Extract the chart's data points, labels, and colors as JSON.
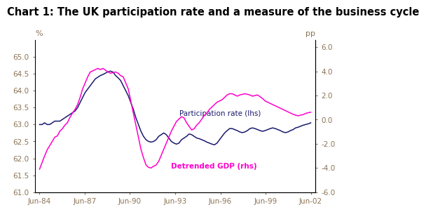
{
  "title": "Chart 1: The UK participation rate and a measure of the business cycle",
  "title_fontsize": 10.5,
  "lhs_label": "%",
  "rhs_label": "pp",
  "lhs_ylim": [
    61.0,
    65.5
  ],
  "rhs_ylim": [
    -6.0,
    6.6
  ],
  "lhs_yticks": [
    61.0,
    61.5,
    62.0,
    62.5,
    63.0,
    63.5,
    64.0,
    64.5,
    65.0
  ],
  "rhs_yticks": [
    -6.0,
    -4.0,
    -2.0,
    0.0,
    2.0,
    4.0,
    6.0
  ],
  "xtick_labels": [
    "Jun-84",
    "Jun-87",
    "Jun-90",
    "Jun-93",
    "Jun-96",
    "Jun-99",
    "Jun-02"
  ],
  "annotation_participation": "Participation rate (lhs)",
  "annotation_gdp": "Detrended GDP (rhs)",
  "participation_color": "#1a1a6e",
  "gdp_color": "#ff00cc",
  "background_color": "#ffffff",
  "label_color": "#8B7355",
  "participation_rate": [
    63.0,
    63.0,
    63.05,
    63.0,
    63.0,
    63.05,
    63.1,
    63.1,
    63.1,
    63.15,
    63.2,
    63.25,
    63.3,
    63.35,
    63.4,
    63.5,
    63.65,
    63.8,
    63.95,
    64.05,
    64.15,
    64.25,
    64.35,
    64.4,
    64.45,
    64.48,
    64.52,
    64.56,
    64.58,
    64.55,
    64.45,
    64.38,
    64.3,
    64.15,
    64.0,
    63.85,
    63.65,
    63.45,
    63.2,
    63.0,
    62.8,
    62.65,
    62.55,
    62.5,
    62.48,
    62.5,
    62.55,
    62.65,
    62.7,
    62.75,
    62.7,
    62.6,
    62.5,
    62.45,
    62.42,
    62.45,
    62.55,
    62.6,
    62.65,
    62.72,
    62.7,
    62.65,
    62.6,
    62.58,
    62.55,
    62.52,
    62.48,
    62.45,
    62.42,
    62.4,
    62.45,
    62.55,
    62.65,
    62.75,
    62.82,
    62.88,
    62.88,
    62.85,
    62.82,
    62.78,
    62.76,
    62.78,
    62.82,
    62.88,
    62.9,
    62.88,
    62.85,
    62.82,
    62.8,
    62.82,
    62.85,
    62.88,
    62.9,
    62.88,
    62.85,
    62.82,
    62.78,
    62.76,
    62.78,
    62.82,
    62.85,
    62.9,
    62.92,
    62.95,
    62.98,
    63.0,
    63.02,
    63.05
  ],
  "detrended_gdp": [
    -4.1,
    -3.55,
    -3.0,
    -2.5,
    -2.15,
    -1.8,
    -1.45,
    -1.35,
    -0.95,
    -0.75,
    -0.45,
    -0.25,
    0.2,
    0.55,
    0.85,
    1.25,
    1.85,
    2.55,
    3.05,
    3.55,
    3.95,
    4.05,
    4.15,
    4.25,
    4.15,
    4.25,
    4.1,
    3.95,
    3.85,
    3.9,
    3.95,
    3.85,
    3.65,
    3.55,
    3.05,
    2.55,
    1.55,
    0.55,
    -0.45,
    -1.45,
    -2.45,
    -3.15,
    -3.75,
    -3.95,
    -4.0,
    -3.85,
    -3.75,
    -3.45,
    -2.95,
    -2.45,
    -1.95,
    -1.45,
    -0.95,
    -0.55,
    -0.15,
    0.05,
    0.25,
    0.15,
    -0.25,
    -0.55,
    -0.85,
    -0.75,
    -0.45,
    -0.25,
    0.05,
    0.35,
    0.55,
    0.85,
    1.05,
    1.25,
    1.45,
    1.55,
    1.65,
    1.85,
    2.05,
    2.15,
    2.15,
    2.05,
    1.95,
    2.05,
    2.1,
    2.15,
    2.1,
    2.05,
    1.95,
    2.0,
    2.05,
    1.9,
    1.75,
    1.55,
    1.45,
    1.35,
    1.25,
    1.15,
    1.05,
    0.95,
    0.85,
    0.75,
    0.65,
    0.55,
    0.45,
    0.38,
    0.32,
    0.38,
    0.42,
    0.52,
    0.58,
    0.62
  ]
}
